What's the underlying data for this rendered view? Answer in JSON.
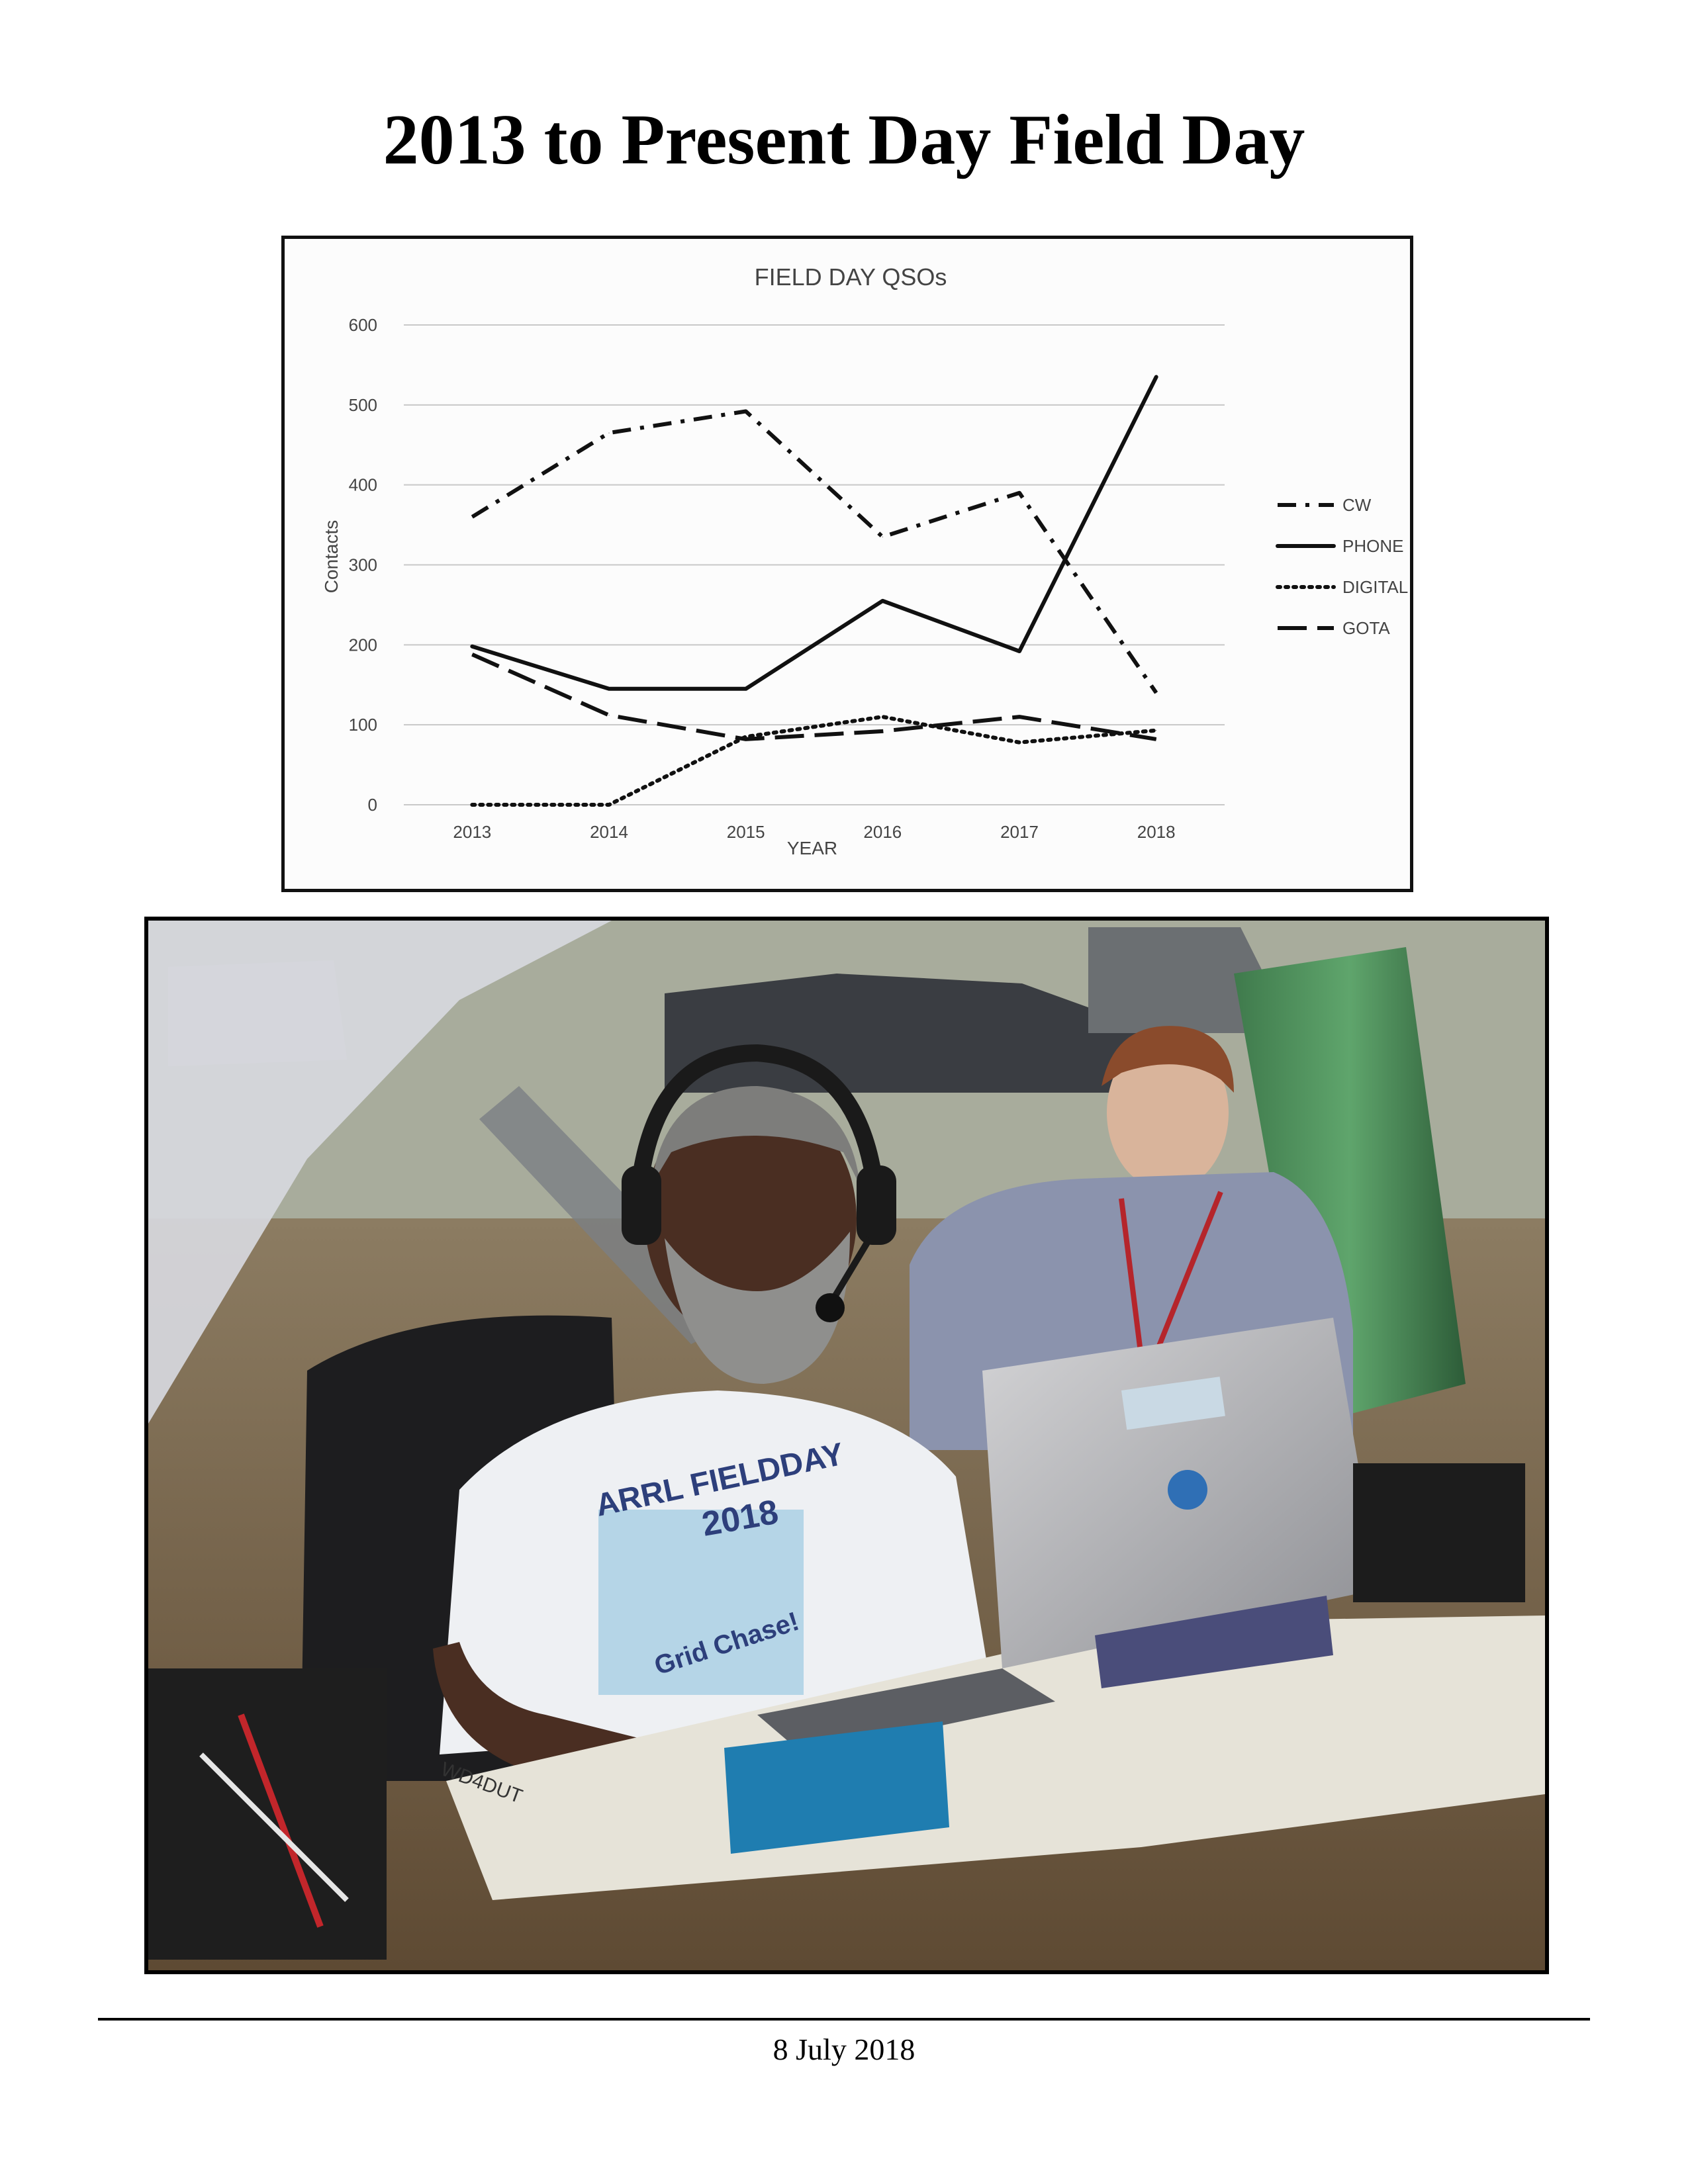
{
  "page": {
    "title": "2013 to Present Day Field Day",
    "footer_date": "8 July 2018"
  },
  "chart_data": {
    "type": "line",
    "title": "FIELD DAY QSOs",
    "xlabel": "YEAR",
    "ylabel": "Contacts",
    "x": [
      "2013",
      "2014",
      "2015",
      "2016",
      "2017",
      "2018"
    ],
    "ylim": [
      0,
      600
    ],
    "yticks": [
      "0",
      "100",
      "200",
      "300",
      "400",
      "500",
      "600"
    ],
    "grid": true,
    "legend_position": "right",
    "series": [
      {
        "name": "CW",
        "values": [
          360,
          465,
          492,
          335,
          390,
          140
        ],
        "style": "dash-dot"
      },
      {
        "name": "PHONE",
        "values": [
          198,
          145,
          145,
          255,
          192,
          535
        ],
        "style": "solid"
      },
      {
        "name": "DIGITAL",
        "values": [
          0,
          0,
          85,
          110,
          78,
          93
        ],
        "style": "dotted"
      },
      {
        "name": "GOTA",
        "values": [
          188,
          112,
          82,
          92,
          110,
          82
        ],
        "style": "long-dash"
      }
    ]
  },
  "photo": {
    "shirt_line1": "ARRL FIELDDAY",
    "shirt_line2": "2018",
    "shirt_line3": "Grid Chase!",
    "table_marking": "WD4DUT"
  }
}
